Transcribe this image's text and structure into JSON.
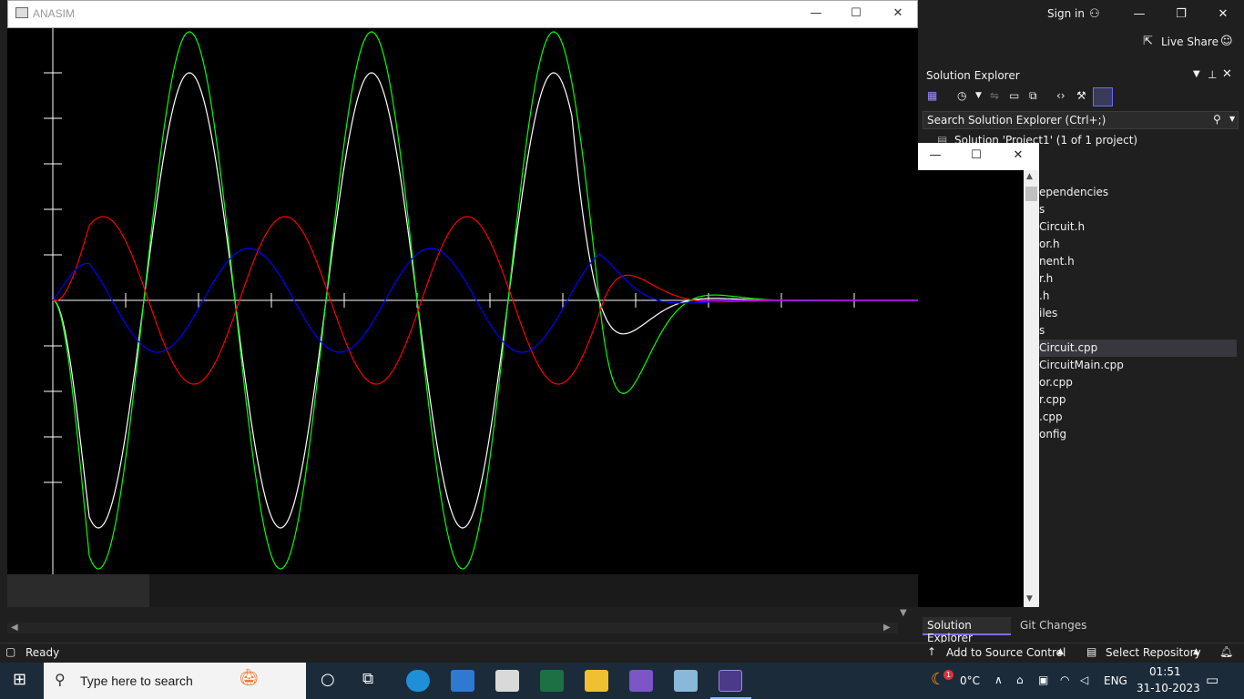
{
  "anasim": {
    "title": "ANASIM",
    "controls": {
      "minimize": "—",
      "maximize": "☐",
      "close": "✕"
    }
  },
  "vs": {
    "sign_in": "Sign in",
    "live_share": "Live Share",
    "controls": {
      "minimize": "—",
      "restore": "❐",
      "close": "✕"
    },
    "status_ready": "Ready",
    "add_source_control": "Add to Source Control",
    "select_repository": "Select Repository"
  },
  "solution_explorer": {
    "title": "Solution Explorer",
    "search_placeholder": "Search Solution Explorer (Ctrl+;)",
    "solution_label": "Solution 'Project1' (1 of 1 project)",
    "items": [
      "ependencies",
      "s",
      "Circuit.h",
      "or.h",
      "nent.h",
      "r.h",
      ".h",
      "iles",
      "s",
      "Circuit.cpp",
      "CircuitMain.cpp",
      "or.cpp",
      "r.cpp",
      ".cpp",
      "onfig"
    ],
    "selected_index": 9,
    "tabs": [
      "Solution Explorer",
      "Git Changes"
    ]
  },
  "taskbar": {
    "search_placeholder": "Type here to search",
    "weather_temp": "0°C",
    "weather_badge": "1",
    "language": "ENG",
    "time": "01:51",
    "date": "31-10-2023"
  },
  "chart_data": {
    "type": "line",
    "title": "",
    "xlabel": "",
    "ylabel": "",
    "grid": false,
    "series": [
      {
        "color": "#ffffff",
        "amplitude": 250,
        "periods": [
          [
            0,
            95,
            250
          ],
          [
            95,
            295,
            250
          ],
          [
            295,
            495,
            250
          ]
        ],
        "decay_start": 570,
        "decay_end": 640
      },
      {
        "color": "#00ff00",
        "amplitude": 295,
        "periods": [
          [
            0,
            95,
            295
          ],
          [
            95,
            295,
            295
          ],
          [
            295,
            495,
            295
          ]
        ],
        "decay_start": 600,
        "decay_end": 780
      },
      {
        "color": "#ff0000",
        "amplitude": 92,
        "periods": [
          [
            0,
            95,
            92
          ],
          [
            95,
            295,
            92
          ],
          [
            295,
            495,
            92
          ]
        ],
        "decay_start": 600,
        "decay_end": 780
      },
      {
        "color": "#0000ff",
        "amplitude": 55,
        "periods": [
          [
            0,
            95,
            55
          ],
          [
            95,
            295,
            55
          ],
          [
            295,
            495,
            55
          ]
        ],
        "decay_start": 600,
        "decay_end": 780
      }
    ]
  }
}
